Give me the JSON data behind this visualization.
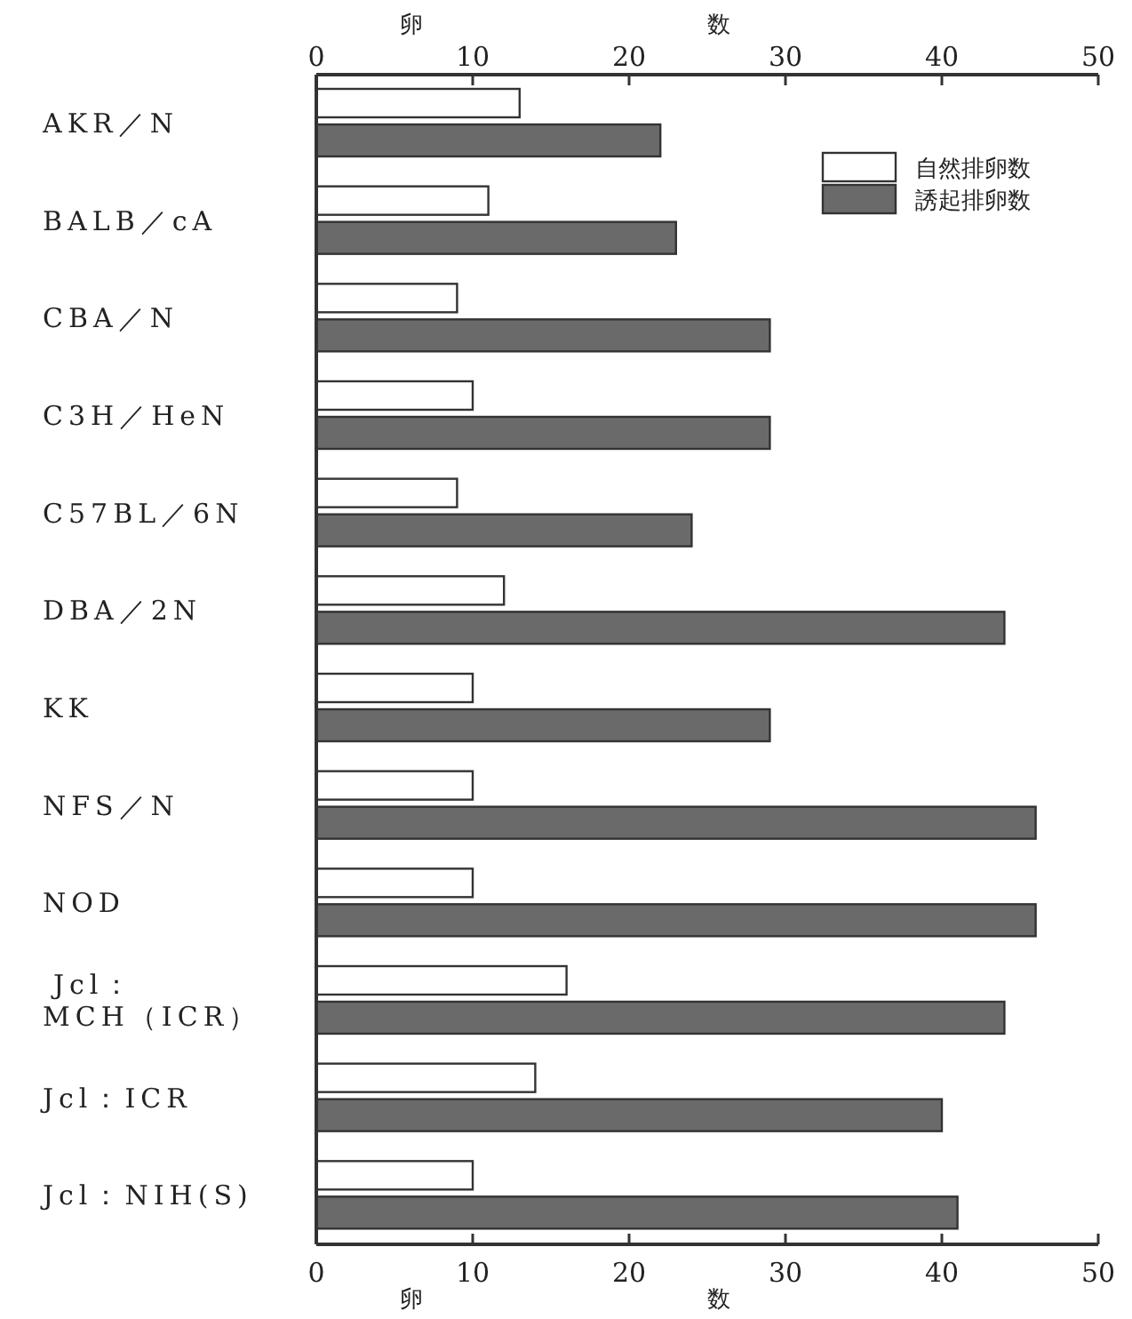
{
  "chart_data": {
    "type": "bar",
    "orientation": "horizontal",
    "categories": [
      "AKR／N",
      "BALB／cA",
      "CBA／N",
      "C3H／HeN",
      "C57BL／6N",
      "DBA／2N",
      "KK",
      "NFS／N",
      "NOD",
      "Jcl：\nMCH（ICR）",
      "Jcl：ICR",
      "Jcl：NIH(S)"
    ],
    "series": [
      {
        "name": "自然排卵数",
        "color": "#ffffff",
        "values": [
          13,
          11,
          9,
          10,
          9,
          12,
          10,
          10,
          10,
          16,
          14,
          10
        ]
      },
      {
        "name": "誘起排卵数",
        "color": "#6a6a6a",
        "values": [
          22,
          23,
          29,
          29,
          24,
          44,
          29,
          46,
          46,
          44,
          40,
          41
        ]
      }
    ],
    "xlabel": "卵数",
    "x2label": "卵数",
    "xlim": [
      0,
      50
    ],
    "xticks": [
      0,
      10,
      20,
      30,
      40,
      50
    ],
    "x2lim": [
      0,
      50
    ],
    "x2ticks": [
      0,
      10,
      20,
      30,
      40,
      50
    ],
    "legend": "top right"
  }
}
